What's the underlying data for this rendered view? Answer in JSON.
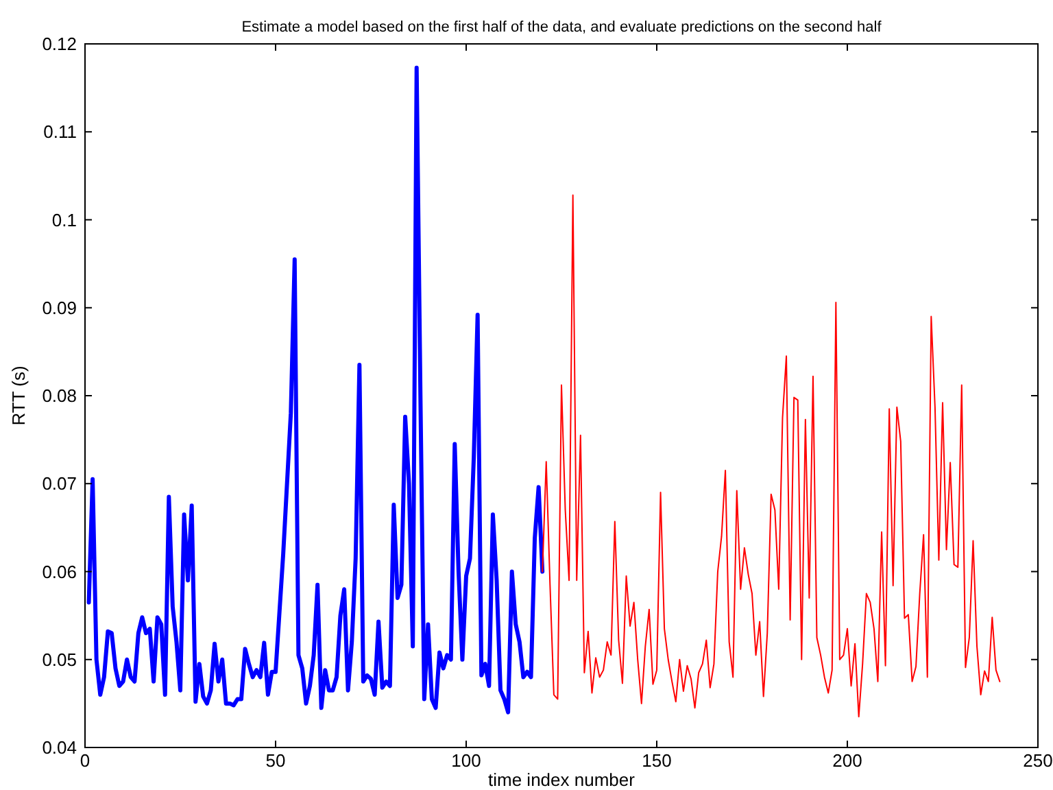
{
  "chart_data": {
    "type": "line",
    "title": "Estimate a model based on the first half of the data, and evaluate predictions on the second half",
    "xlabel": "time index number",
    "ylabel": "RTT (s)",
    "xlim": [
      0,
      250
    ],
    "xticks": [
      0,
      50,
      100,
      150,
      200,
      250
    ],
    "ylim": [
      0.04,
      0.12
    ],
    "yticks": [
      0.04,
      0.05,
      0.06,
      0.07,
      0.08,
      0.09,
      0.1,
      0.11,
      0.12
    ],
    "grid": false,
    "marker": "none",
    "series": [
      {
        "color": "#0000ff",
        "x": [
          1,
          2,
          3,
          4,
          5,
          6,
          7,
          8,
          9,
          10,
          11,
          12,
          13,
          14,
          15,
          16,
          17,
          18,
          19,
          20,
          21,
          22,
          23,
          24,
          25,
          26,
          27,
          28,
          29,
          30,
          31,
          32,
          33,
          34,
          35,
          36,
          37,
          38,
          39,
          40,
          41,
          42,
          43,
          44,
          45,
          46,
          47,
          48,
          49,
          50,
          52,
          54,
          55,
          56,
          57,
          58,
          59,
          60,
          61,
          62,
          63,
          64,
          65,
          66,
          67,
          68,
          69,
          70,
          71,
          72,
          73,
          74,
          75,
          76,
          77,
          78,
          79,
          80,
          81,
          82,
          83,
          84,
          85,
          86,
          87,
          88,
          89,
          90,
          91,
          92,
          93,
          94,
          95,
          96,
          97,
          98,
          99,
          100,
          101,
          102,
          103,
          104,
          105,
          106,
          107,
          108,
          109,
          110,
          111,
          112,
          113,
          114,
          115,
          116,
          117,
          118,
          119,
          120
        ],
        "values": [
          0.0565,
          0.0705,
          0.05,
          0.046,
          0.048,
          0.0532,
          0.053,
          0.049,
          0.047,
          0.0475,
          0.05,
          0.048,
          0.0475,
          0.053,
          0.0548,
          0.053,
          0.0535,
          0.0475,
          0.0548,
          0.054,
          0.046,
          0.0685,
          0.056,
          0.052,
          0.0465,
          0.0665,
          0.059,
          0.0675,
          0.0452,
          0.0495,
          0.0458,
          0.045,
          0.0465,
          0.0518,
          0.0475,
          0.05,
          0.045,
          0.045,
          0.0448,
          0.0455,
          0.0455,
          0.0512,
          0.0495,
          0.048,
          0.0488,
          0.048,
          0.0519,
          0.046,
          0.0486,
          0.0486,
          0.062,
          0.078,
          0.0955,
          0.0505,
          0.049,
          0.045,
          0.047,
          0.0505,
          0.0585,
          0.0445,
          0.0488,
          0.0465,
          0.0465,
          0.048,
          0.055,
          0.058,
          0.0465,
          0.052,
          0.0615,
          0.0835,
          0.0475,
          0.0482,
          0.0478,
          0.046,
          0.0543,
          0.0468,
          0.0475,
          0.047,
          0.0676,
          0.057,
          0.0585,
          0.0776,
          0.07,
          0.0515,
          0.1173,
          0.08,
          0.0455,
          0.054,
          0.0455,
          0.0445,
          0.0508,
          0.049,
          0.0505,
          0.05,
          0.0745,
          0.06,
          0.05,
          0.0595,
          0.0615,
          0.073,
          0.0892,
          0.0482,
          0.0495,
          0.047,
          0.0665,
          0.059,
          0.0465,
          0.0455,
          0.044,
          0.06,
          0.054,
          0.052,
          0.048,
          0.0486,
          0.048,
          0.0638,
          0.0696,
          0.06
        ]
      },
      {
        "color": "#ff0000",
        "x": [
          120,
          121,
          122,
          123,
          124,
          125,
          126,
          127,
          128,
          129,
          130,
          131,
          132,
          133,
          134,
          135,
          136,
          137,
          138,
          139,
          140,
          141,
          142,
          143,
          144,
          145,
          146,
          147,
          148,
          149,
          150,
          151,
          152,
          153,
          154,
          155,
          156,
          157,
          158,
          159,
          160,
          161,
          162,
          163,
          164,
          165,
          166,
          167,
          168,
          169,
          170,
          171,
          172,
          173,
          174,
          175,
          176,
          177,
          178,
          179,
          180,
          181,
          182,
          183,
          184,
          185,
          186,
          187,
          188,
          189,
          190,
          191,
          192,
          193,
          194,
          195,
          196,
          197,
          198,
          199,
          200,
          201,
          202,
          203,
          204,
          205,
          206,
          207,
          208,
          209,
          210,
          211,
          212,
          213,
          214,
          215,
          216,
          217,
          218,
          219,
          220,
          221,
          222,
          223,
          224,
          225,
          226,
          227,
          228,
          229,
          230,
          231,
          232,
          233,
          234,
          235,
          236,
          237,
          238,
          239,
          240
        ],
        "values": [
          0.06,
          0.0725,
          0.0585,
          0.046,
          0.0455,
          0.0812,
          0.067,
          0.059,
          0.1028,
          0.059,
          0.0755,
          0.0485,
          0.0532,
          0.0462,
          0.0502,
          0.048,
          0.0488,
          0.052,
          0.0505,
          0.0657,
          0.0522,
          0.0473,
          0.0595,
          0.0538,
          0.0565,
          0.05,
          0.045,
          0.0515,
          0.0557,
          0.0472,
          0.0488,
          0.069,
          0.0535,
          0.05,
          0.0475,
          0.0452,
          0.05,
          0.0464,
          0.0493,
          0.0478,
          0.0445,
          0.0485,
          0.0495,
          0.0522,
          0.0468,
          0.0495,
          0.06,
          0.064,
          0.0715,
          0.052,
          0.048,
          0.0692,
          0.058,
          0.0627,
          0.0597,
          0.0575,
          0.0505,
          0.0543,
          0.0458,
          0.053,
          0.0688,
          0.067,
          0.058,
          0.0775,
          0.0845,
          0.0545,
          0.0798,
          0.0795,
          0.05,
          0.0773,
          0.057,
          0.0822,
          0.0525,
          0.0505,
          0.048,
          0.0462,
          0.0488,
          0.0906,
          0.05,
          0.0505,
          0.0535,
          0.047,
          0.0518,
          0.0435,
          0.0495,
          0.0575,
          0.0565,
          0.0535,
          0.0475,
          0.0645,
          0.0493,
          0.0785,
          0.0584,
          0.0787,
          0.0748,
          0.0547,
          0.0551,
          0.0475,
          0.0492,
          0.0575,
          0.0642,
          0.048,
          0.089,
          0.0787,
          0.0613,
          0.0792,
          0.0625,
          0.0724,
          0.0608,
          0.0605,
          0.0812,
          0.0491,
          0.0525,
          0.0635,
          0.0515,
          0.046,
          0.0487,
          0.0475,
          0.0548,
          0.0488,
          0.0475
        ]
      }
    ]
  }
}
